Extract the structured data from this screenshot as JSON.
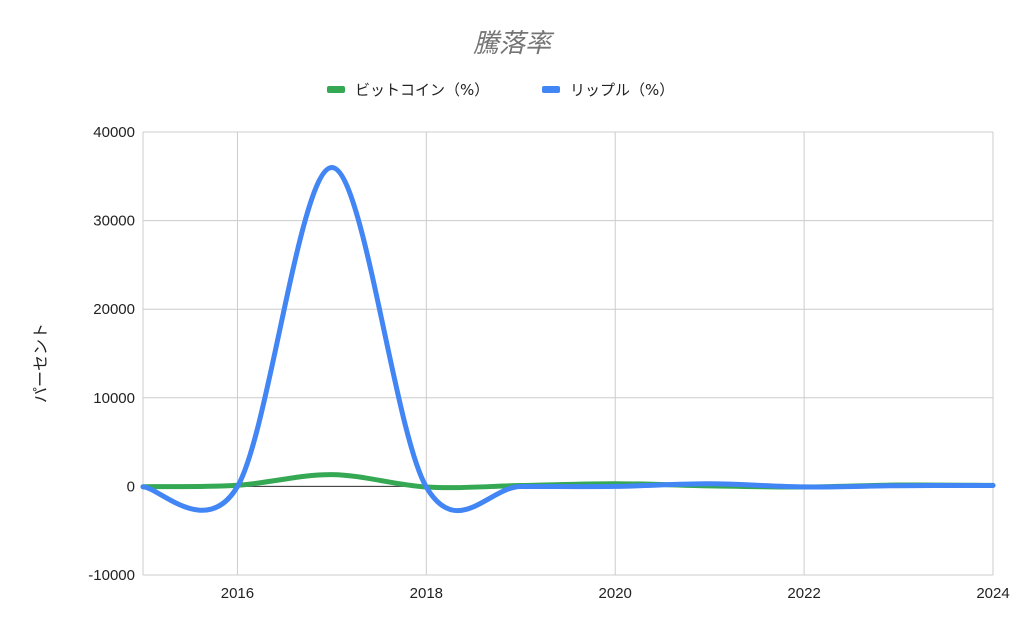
{
  "chart_data": {
    "type": "line",
    "title": "騰落率",
    "xlabel": "",
    "ylabel": "パーセント",
    "xlim": [
      2015,
      2024
    ],
    "ylim": [
      -10000,
      40000
    ],
    "x_ticks": [
      2016,
      2018,
      2020,
      2022,
      2024
    ],
    "y_ticks": [
      -10000,
      0,
      10000,
      20000,
      30000,
      40000
    ],
    "grid": true,
    "legend_position": "top",
    "smooth": true,
    "x": [
      2015,
      2016,
      2017,
      2018,
      2019,
      2020,
      2021,
      2022,
      2023,
      2024
    ],
    "series": [
      {
        "name": "ビットコイン（%）",
        "color": "#34a853",
        "values": [
          -35,
          125,
          1331,
          -73,
          95,
          305,
          60,
          -65,
          155,
          120
        ]
      },
      {
        "name": "リップル（%）",
        "color": "#4285f4",
        "values": [
          -50,
          -20,
          36000,
          -80,
          -10,
          0,
          300,
          -60,
          80,
          100
        ]
      }
    ]
  }
}
